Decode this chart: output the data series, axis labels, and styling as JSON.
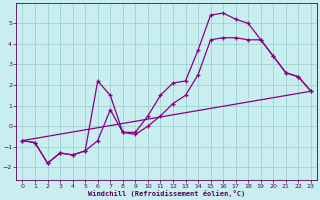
{
  "xlabel": "Windchill (Refroidissement éolien,°C)",
  "xlim": [
    -0.5,
    23.5
  ],
  "ylim": [
    -2.6,
    6.0
  ],
  "yticks": [
    -2,
    -1,
    0,
    1,
    2,
    3,
    4,
    5
  ],
  "xticks": [
    0,
    1,
    2,
    3,
    4,
    5,
    6,
    7,
    8,
    9,
    10,
    11,
    12,
    13,
    14,
    15,
    16,
    17,
    18,
    19,
    20,
    21,
    22,
    23
  ],
  "background_color": "#c8eef0",
  "grid_color": "#99cccc",
  "line_color": "#880088",
  "curve1_x": [
    0,
    1,
    2,
    3,
    4,
    5,
    6,
    7,
    8,
    9,
    10,
    11,
    12,
    13,
    14,
    15,
    16,
    17,
    18,
    19,
    20,
    21,
    22,
    23
  ],
  "curve1_y": [
    -0.7,
    -0.8,
    -1.8,
    -1.3,
    -1.4,
    -1.2,
    -0.7,
    0.8,
    -0.3,
    -0.3,
    0.5,
    1.5,
    2.1,
    2.2,
    3.7,
    5.4,
    5.5,
    5.2,
    5.0,
    4.2,
    3.4,
    2.6,
    2.4,
    1.7
  ],
  "curve2_x": [
    0,
    1,
    2,
    3,
    4,
    5,
    6,
    7,
    8,
    9,
    10,
    11,
    12,
    13,
    14,
    15,
    16,
    17,
    18,
    19,
    20,
    21,
    22,
    23
  ],
  "curve2_y": [
    -0.7,
    -0.8,
    -1.8,
    -1.3,
    -1.4,
    -1.2,
    2.2,
    1.5,
    -0.3,
    -0.4,
    0.0,
    0.5,
    1.1,
    1.5,
    2.5,
    4.2,
    4.3,
    4.3,
    4.2,
    4.2,
    3.4,
    2.6,
    2.4,
    1.7
  ],
  "line3_x": [
    0,
    23
  ],
  "line3_y": [
    -0.7,
    1.7
  ]
}
